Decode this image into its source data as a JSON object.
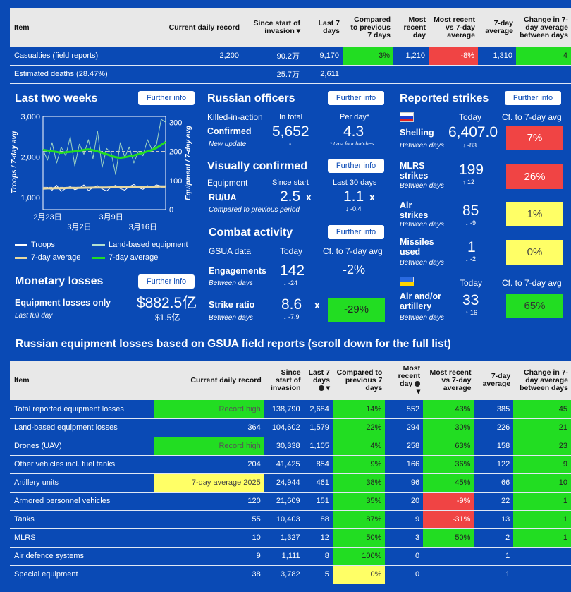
{
  "top_table": {
    "headers": [
      "Item",
      "Current daily record",
      "Since start of invasion",
      "Last 7 days",
      "Compared to previous 7 days",
      "Most recent day",
      "Most recent vs 7-day average",
      "7-day average",
      "Change in 7-day average between days"
    ],
    "rows": [
      {
        "item": "Casualties (field reports)",
        "record": "2,200",
        "since": "90.2万",
        "last7": "9,170",
        "cmp": "3%",
        "recent": "1,210",
        "recent_vs": "-8%",
        "avg7": "1,310",
        "change": "4"
      },
      {
        "item": "Estimated deaths (28.47%)",
        "record": "",
        "since": "25.7万",
        "last7": "2,611",
        "cmp": "",
        "recent": "",
        "recent_vs": "",
        "avg7": "",
        "change": ""
      }
    ]
  },
  "further_info": "Further info",
  "two_weeks": {
    "title": "Last two weeks",
    "y_left_label": "Troops / 7-day avg",
    "y_right_label": "Equipment / 7-day avg",
    "y_left_ticks": [
      "3,000",
      "2,000",
      "1,000"
    ],
    "y_right_ticks": [
      "300",
      "200",
      "100",
      "0"
    ],
    "x_ticks_top": [
      "2月23日",
      "3月9日"
    ],
    "x_ticks_bottom": [
      "3月2日",
      "3月16日"
    ],
    "legend": [
      "Troops",
      "Land-based equipment",
      "7-day average",
      "7-day average"
    ]
  },
  "chart_data": {
    "type": "line",
    "x": [
      1,
      2,
      3,
      4,
      5,
      6,
      7,
      8,
      9,
      10,
      11,
      12,
      13,
      14,
      15,
      16,
      17,
      18,
      19,
      20,
      21,
      22,
      23,
      24,
      25,
      26,
      27,
      28
    ],
    "series": [
      {
        "name": "Troops",
        "axis": "left",
        "values": [
          1200,
          1250,
          1180,
          1300,
          1150,
          1220,
          1270,
          1190,
          1230,
          1310,
          1170,
          1240,
          1290,
          1210,
          1160,
          1250,
          1300,
          1220,
          1180,
          1270,
          1320,
          1240,
          1200,
          1290,
          1250,
          1310,
          1280,
          1260
        ]
      },
      {
        "name": "Land-based equipment",
        "axis": "right",
        "values": [
          205,
          170,
          230,
          160,
          215,
          185,
          250,
          150,
          225,
          190,
          240,
          175,
          270,
          145,
          210,
          195,
          120,
          230,
          180,
          215,
          160,
          200,
          185,
          240,
          205,
          225,
          310,
          300
        ]
      },
      {
        "name": "7-day average",
        "axis": "left",
        "values": [
          1220,
          1225,
          1225,
          1230,
          1228,
          1232,
          1235,
          1233,
          1236,
          1238,
          1240,
          1242,
          1243,
          1245,
          1246,
          1248,
          1250,
          1252,
          1253,
          1255,
          1258,
          1260,
          1262,
          1263,
          1265,
          1268,
          1270,
          1272
        ]
      },
      {
        "name": "7-day average",
        "axis": "right",
        "values": [
          205,
          203,
          200,
          198,
          195,
          197,
          198,
          200,
          202,
          205,
          207,
          204,
          200,
          195,
          190,
          185,
          180,
          178,
          180,
          183,
          186,
          190,
          195,
          200,
          205,
          212,
          222,
          232
        ]
      }
    ],
    "ylim_left": [
      700,
      3000
    ],
    "ylim_right": [
      0,
      320
    ],
    "reference_left": 1250,
    "reference_right": 200
  },
  "officers": {
    "title": "Russian officers",
    "kia": "Killed-in-action",
    "total_label": "In total",
    "perday_label": "Per day*",
    "confirmed": "Confirmed",
    "new_update": "New update",
    "total": "5,652",
    "dash": "-",
    "perday": "4.3",
    "footnote": "* Last four batches"
  },
  "visual": {
    "title": "Visually confirmed",
    "equipment": "Equipment",
    "since_start": "Since start",
    "last30": "Last 30 days",
    "ratio_label": "RU/UA",
    "compared": "Compared to previous period",
    "since_val": "2.5",
    "last30_val": "1.1",
    "x": "x",
    "delta": "↓ -0.4"
  },
  "combat": {
    "title": "Combat activity",
    "gsua": "GSUA data",
    "today": "Today",
    "cf": "Cf. to 7-day avg",
    "eng_label": "Engagements",
    "eng_sub": "Between days",
    "eng_val": "142",
    "eng_delta": "↓ -24",
    "eng_cf": "-2%",
    "strike_label": "Strike ratio",
    "strike_sub": "Between days",
    "strike_val": "8.6",
    "strike_x": "x",
    "strike_delta": "↓ -7.9",
    "strike_cf": "-29%"
  },
  "monetary": {
    "title": "Monetary losses",
    "label": "Equipment losses only",
    "sub": "Last full day",
    "value": "$882.5亿",
    "value2": "$1.5亿"
  },
  "strikes": {
    "title": "Reported strikes",
    "today": "Today",
    "cf": "Cf. to 7-day avg",
    "between": "Between days",
    "rows": [
      {
        "label": "Shelling",
        "val": "6,407.0",
        "delta": "↓ -83",
        "cf": "7%",
        "color": "#f04444"
      },
      {
        "label": "MLRS strikes",
        "val": "199",
        "delta": "↑ 12",
        "cf": "26%",
        "color": "#f04444"
      },
      {
        "label": "Air strikes",
        "val": "85",
        "delta": "↓ -9",
        "cf": "1%",
        "color": "#ffff66"
      },
      {
        "label": "Missiles used",
        "val": "1",
        "delta": "↓ -2",
        "cf": "0%",
        "color": "#ffff66"
      }
    ],
    "ua_label": "Air and/or artillery",
    "ua_val": "33",
    "ua_delta": "↑ 16",
    "ua_cf": "65%",
    "ua_today": "Today",
    "ua_cfh": "Cf. to 7-day avg"
  },
  "equip_title": "Russian equipment losses based on GSUA field reports (scroll down for the full list)",
  "equip_table": {
    "headers": [
      "Item",
      "Current daily record",
      "Since start of invasion",
      "Last 7 days",
      "Compared to previous 7 days",
      "Most recent day",
      "Most recent vs 7-day average",
      "7-day average",
      "Change in 7-day average between days"
    ],
    "rows": [
      {
        "item": "Total reported equipment losses",
        "record": "Record high",
        "rc": "gr",
        "since": "138,790",
        "last7": "2,684",
        "cmp": "14%",
        "cc": "g",
        "recent": "552",
        "rv": "43%",
        "rvc": "g",
        "avg7": "385",
        "change": "45",
        "chc": "g"
      },
      {
        "item": "Land-based equipment losses",
        "record": "364",
        "rc": "",
        "since": "104,602",
        "last7": "1,579",
        "cmp": "22%",
        "cc": "g",
        "recent": "294",
        "rv": "30%",
        "rvc": "g",
        "avg7": "226",
        "change": "21",
        "chc": "g"
      },
      {
        "item": "Drones (UAV)",
        "record": "Record high",
        "rc": "gr",
        "since": "30,338",
        "last7": "1,105",
        "cmp": "4%",
        "cc": "g",
        "recent": "258",
        "rv": "63%",
        "rvc": "g",
        "avg7": "158",
        "change": "23",
        "chc": "g"
      },
      {
        "item": "Other vehicles incl. fuel tanks",
        "record": "204",
        "rc": "",
        "since": "41,425",
        "last7": "854",
        "cmp": "9%",
        "cc": "g",
        "recent": "166",
        "rv": "36%",
        "rvc": "g",
        "avg7": "122",
        "change": "9",
        "chc": "g"
      },
      {
        "item": "Artillery units",
        "record": "7-day average 2025",
        "rc": "y",
        "since": "24,944",
        "last7": "461",
        "cmp": "38%",
        "cc": "g",
        "recent": "96",
        "rv": "45%",
        "rvc": "g",
        "avg7": "66",
        "change": "10",
        "chc": "g"
      },
      {
        "item": "Armored personnel vehicles",
        "record": "120",
        "rc": "",
        "since": "21,609",
        "last7": "151",
        "cmp": "35%",
        "cc": "g",
        "recent": "20",
        "rv": "-9%",
        "rvc": "r",
        "avg7": "22",
        "change": "1",
        "chc": "g"
      },
      {
        "item": "Tanks",
        "record": "55",
        "rc": "",
        "since": "10,403",
        "last7": "88",
        "cmp": "87%",
        "cc": "g",
        "recent": "9",
        "rv": "-31%",
        "rvc": "r",
        "avg7": "13",
        "change": "1",
        "chc": "g"
      },
      {
        "item": "MLRS",
        "record": "10",
        "rc": "",
        "since": "1,327",
        "last7": "12",
        "cmp": "50%",
        "cc": "g",
        "recent": "3",
        "rv": "50%",
        "rvc": "g",
        "avg7": "2",
        "change": "1",
        "chc": "g"
      },
      {
        "item": "Air defence systems",
        "record": "9",
        "rc": "",
        "since": "1,111",
        "last7": "8",
        "cmp": "100%",
        "cc": "g",
        "recent": "0",
        "rv": "",
        "rvc": "",
        "avg7": "1",
        "change": "",
        "chc": ""
      },
      {
        "item": "Special equipment",
        "record": "38",
        "rc": "",
        "since": "3,782",
        "last7": "5",
        "cmp": "0%",
        "cc": "y",
        "recent": "0",
        "rv": "",
        "rvc": "",
        "avg7": "1",
        "change": "",
        "chc": ""
      }
    ]
  }
}
